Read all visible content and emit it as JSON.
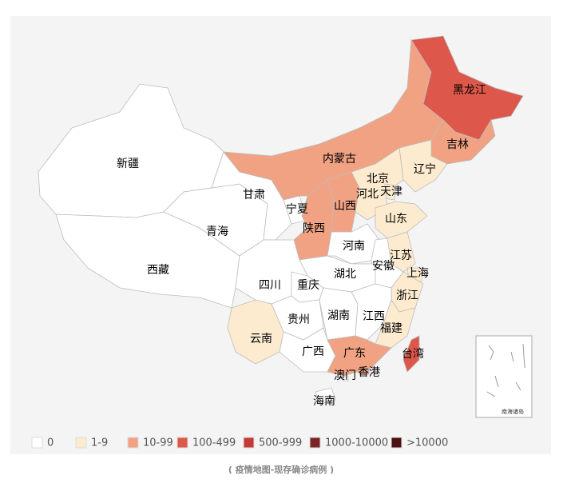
{
  "map": {
    "regions": [
      {
        "name": "新疆",
        "level": 0
      },
      {
        "name": "西藏",
        "level": 0
      },
      {
        "name": "青海",
        "level": 0
      },
      {
        "name": "甘肃",
        "level": 0
      },
      {
        "name": "宁夏",
        "level": 0
      },
      {
        "name": "内蒙古",
        "level": 2
      },
      {
        "name": "黑龙江",
        "level": 3
      },
      {
        "name": "吉林",
        "level": 2
      },
      {
        "name": "辽宁",
        "level": 1
      },
      {
        "name": "北京",
        "level": 1
      },
      {
        "name": "天津",
        "level": 1
      },
      {
        "name": "河北",
        "level": 1
      },
      {
        "name": "山西",
        "level": 2
      },
      {
        "name": "山东",
        "level": 1
      },
      {
        "name": "陕西",
        "level": 2
      },
      {
        "name": "河南",
        "level": 0
      },
      {
        "name": "江苏",
        "level": 1
      },
      {
        "name": "安徽",
        "level": 0
      },
      {
        "name": "上海",
        "level": 1
      },
      {
        "name": "湖北",
        "level": 0
      },
      {
        "name": "四川",
        "level": 0
      },
      {
        "name": "重庆",
        "level": 0
      },
      {
        "name": "浙江",
        "level": 1
      },
      {
        "name": "贵州",
        "level": 0
      },
      {
        "name": "湖南",
        "level": 0
      },
      {
        "name": "江西",
        "level": 0
      },
      {
        "name": "福建",
        "level": 1
      },
      {
        "name": "云南",
        "level": 1
      },
      {
        "name": "广西",
        "level": 0
      },
      {
        "name": "广东",
        "level": 2
      },
      {
        "name": "台湾",
        "level": 3
      },
      {
        "name": "澳门",
        "level": 0
      },
      {
        "name": "香港",
        "level": 2
      },
      {
        "name": "海南",
        "level": 0
      }
    ],
    "inset_label": "南海诸岛",
    "legend": [
      {
        "label": "0",
        "color": "#ffffff"
      },
      {
        "label": "1-9",
        "color": "#fdebcf"
      },
      {
        "label": "10-99",
        "color": "#f0a283"
      },
      {
        "label": "100-499",
        "color": "#dd584b"
      },
      {
        "label": "500-999",
        "color": "#c43b36"
      },
      {
        "label": "1000-10000",
        "color": "#7c2526"
      },
      {
        "label": ">10000",
        "color": "#4b1214"
      }
    ]
  },
  "caption": "( 疫情地图-现存确诊病例 )"
}
